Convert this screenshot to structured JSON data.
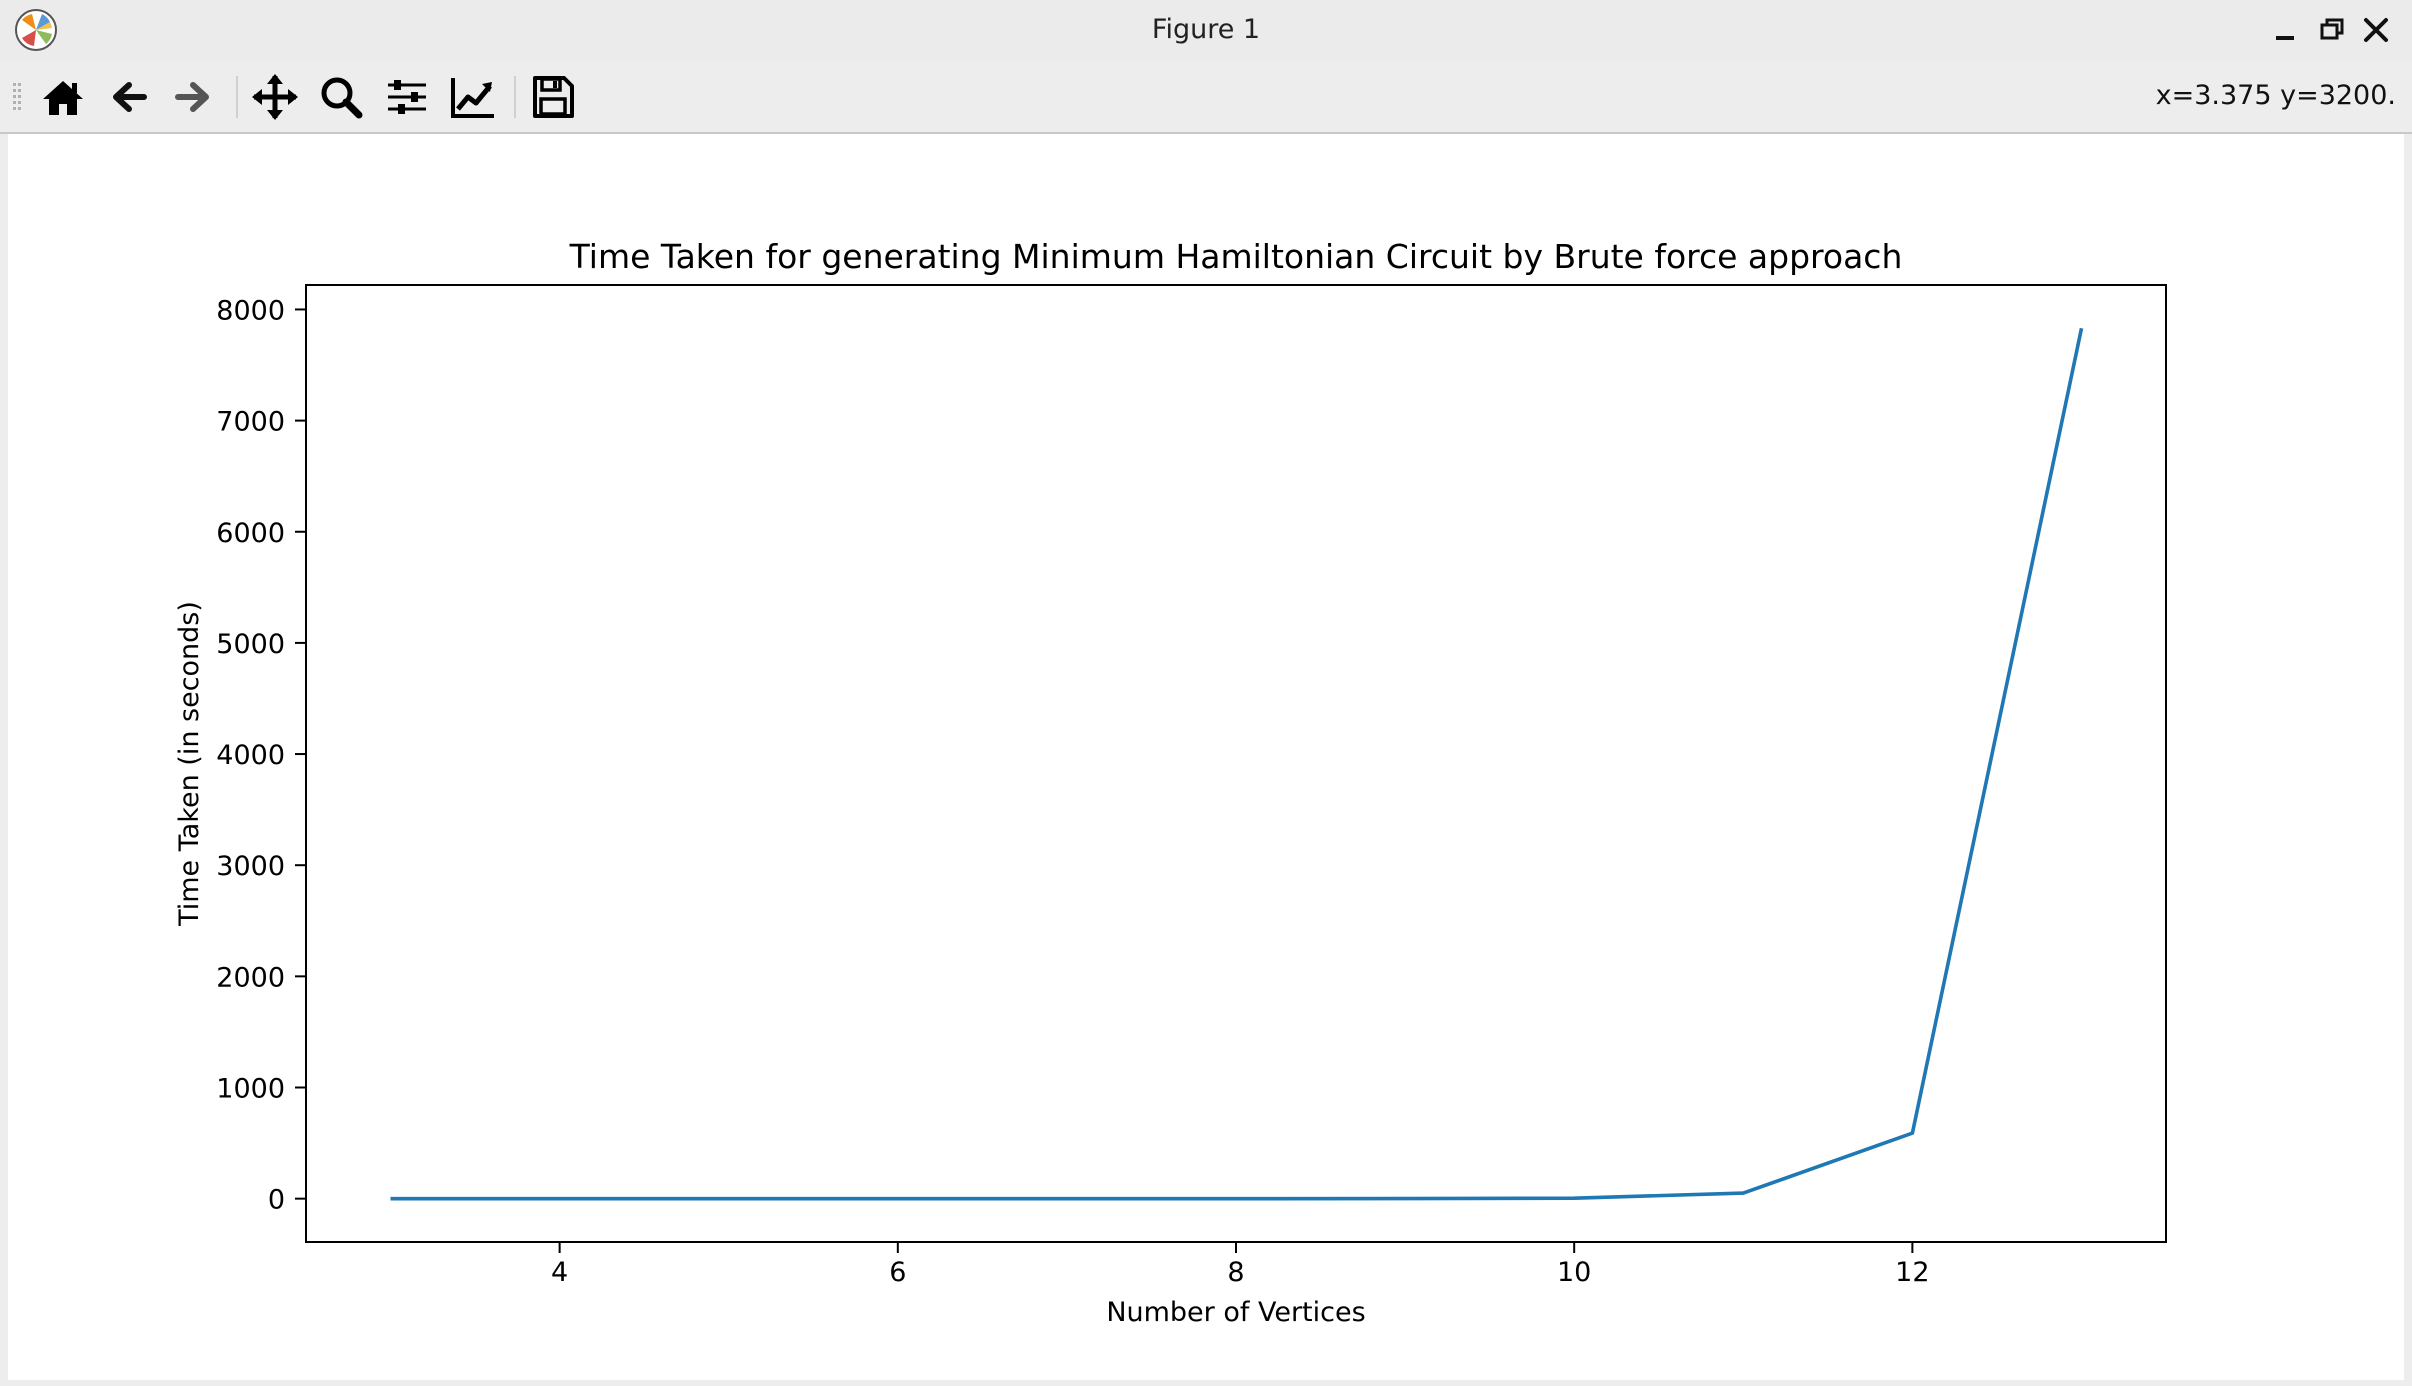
{
  "window": {
    "title": "Figure 1",
    "app_icon": "matplotlib-logo-icon",
    "controls": [
      "minimize-icon",
      "restore-icon",
      "close-icon"
    ]
  },
  "toolbar": {
    "buttons": [
      {
        "name": "home-icon",
        "tooltip": "Home"
      },
      {
        "name": "back-arrow-icon",
        "tooltip": "Back"
      },
      {
        "name": "forward-arrow-icon",
        "tooltip": "Forward"
      },
      {
        "name": "pan-move-icon",
        "tooltip": "Pan"
      },
      {
        "name": "zoom-magnifier-icon",
        "tooltip": "Zoom"
      },
      {
        "name": "subplots-sliders-icon",
        "tooltip": "Subplots"
      },
      {
        "name": "edit-axes-chart-icon",
        "tooltip": "Customize"
      },
      {
        "name": "save-floppy-icon",
        "tooltip": "Save"
      }
    ],
    "coords_text": "x=3.375 y=3200."
  },
  "chart_data": {
    "type": "line",
    "title": "Time Taken for generating Minimum Hamiltonian Circuit by Brute force approach",
    "xlabel": "Number of Vertices",
    "ylabel": "Time Taken (in seconds)",
    "xlim": [
      2.5,
      13.5
    ],
    "ylim": [
      -390,
      8220
    ],
    "xticks": [
      4,
      6,
      8,
      10,
      12
    ],
    "yticks": [
      0,
      1000,
      2000,
      3000,
      4000,
      5000,
      6000,
      7000,
      8000
    ],
    "grid": false,
    "series": [
      {
        "color": "#1f77b4",
        "x": [
          3,
          4,
          5,
          6,
          7,
          8,
          9,
          10,
          11,
          12,
          13
        ],
        "y": [
          0,
          0,
          0,
          0,
          0,
          0,
          0.3,
          4,
          50,
          590,
          7830
        ]
      }
    ]
  }
}
